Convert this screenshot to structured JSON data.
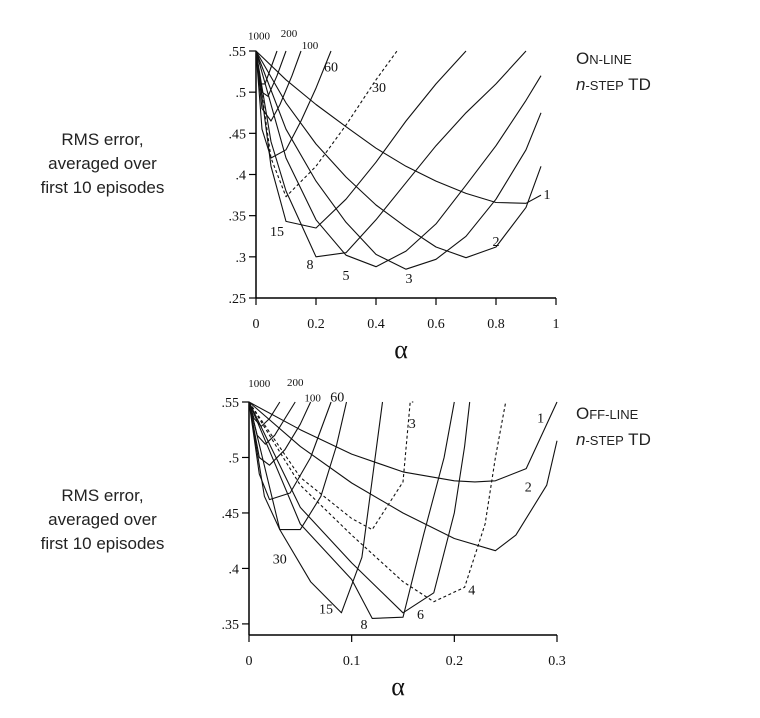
{
  "chart_data": [
    {
      "type": "line",
      "title_parts": [
        {
          "text": "O",
          "style": "big"
        },
        {
          "text": "N-LINE",
          "style": "sc"
        },
        {
          "text": "n",
          "style": "italic"
        },
        {
          "text": "-STEP",
          "style": "sc"
        },
        {
          "text": " TD",
          "style": "big"
        }
      ],
      "title_line1": "ON-LINE",
      "title_line2": "n-STEP TD",
      "ylabel_lines": [
        "RMS error,",
        "averaged over",
        "first 10 episodes"
      ],
      "xlabel": "α",
      "xlim": [
        0,
        1
      ],
      "ylim": [
        0.25,
        0.55
      ],
      "xticks": [
        0,
        0.2,
        0.4,
        0.6,
        0.8,
        1
      ],
      "xtick_labels": [
        "0",
        "0.2",
        "0.4",
        "0.6",
        "0.8",
        "1"
      ],
      "yticks": [
        0.25,
        0.3,
        0.35,
        0.4,
        0.45,
        0.5,
        0.55
      ],
      "ytick_labels": [
        ".25",
        ".3",
        ".35",
        ".4",
        ".45",
        ".5",
        ".55"
      ],
      "grid": false,
      "series": [
        {
          "name": "1",
          "dashed": false,
          "x": [
            0,
            0.1,
            0.2,
            0.3,
            0.4,
            0.5,
            0.6,
            0.7,
            0.8,
            0.9,
            0.95
          ],
          "y": [
            0.55,
            0.515,
            0.485,
            0.458,
            0.432,
            0.41,
            0.392,
            0.377,
            0.366,
            0.365,
            0.375
          ],
          "label_x": 0.97,
          "label_y": 0.375
        },
        {
          "name": "2",
          "dashed": false,
          "x": [
            0,
            0.1,
            0.2,
            0.3,
            0.4,
            0.5,
            0.6,
            0.7,
            0.8,
            0.9,
            0.95
          ],
          "y": [
            0.55,
            0.487,
            0.437,
            0.397,
            0.363,
            0.336,
            0.312,
            0.299,
            0.312,
            0.36,
            0.41
          ],
          "label_x": 0.8,
          "label_y": 0.318
        },
        {
          "name": "3",
          "dashed": false,
          "x": [
            0,
            0.1,
            0.2,
            0.3,
            0.4,
            0.5,
            0.6,
            0.7,
            0.8,
            0.9,
            0.95
          ],
          "y": [
            0.55,
            0.455,
            0.392,
            0.342,
            0.303,
            0.285,
            0.297,
            0.325,
            0.37,
            0.43,
            0.475
          ],
          "label_x": 0.51,
          "label_y": 0.273
        },
        {
          "name": "5",
          "dashed": false,
          "x": [
            0,
            0.1,
            0.2,
            0.3,
            0.4,
            0.5,
            0.6,
            0.7,
            0.8,
            0.9,
            0.95
          ],
          "y": [
            0.55,
            0.42,
            0.345,
            0.302,
            0.288,
            0.307,
            0.34,
            0.387,
            0.435,
            0.49,
            0.52
          ],
          "label_x": 0.3,
          "label_y": 0.277
        },
        {
          "name": "8",
          "dashed": false,
          "x": [
            0,
            0.05,
            0.1,
            0.2,
            0.3,
            0.4,
            0.5,
            0.6,
            0.7,
            0.8,
            0.9
          ],
          "y": [
            0.55,
            0.44,
            0.38,
            0.3,
            0.305,
            0.345,
            0.39,
            0.435,
            0.475,
            0.51,
            0.55
          ],
          "label_x": 0.18,
          "label_y": 0.29
        },
        {
          "name": "15",
          "dashed": false,
          "x": [
            0,
            0.05,
            0.1,
            0.2,
            0.3,
            0.4,
            0.5,
            0.6,
            0.7
          ],
          "y": [
            0.55,
            0.41,
            0.343,
            0.335,
            0.37,
            0.415,
            0.465,
            0.51,
            0.55
          ],
          "label_x": 0.07,
          "label_y": 0.33
        },
        {
          "name": "30",
          "dashed": true,
          "x": [
            0,
            0.05,
            0.1,
            0.2,
            0.3,
            0.4,
            0.47
          ],
          "y": [
            0.55,
            0.42,
            0.373,
            0.41,
            0.46,
            0.515,
            0.55
          ],
          "label_x": 0.41,
          "label_y": 0.505
        },
        {
          "name": "60",
          "dashed": false,
          "x": [
            0,
            0.02,
            0.05,
            0.1,
            0.15,
            0.2,
            0.25
          ],
          "y": [
            0.55,
            0.455,
            0.42,
            0.43,
            0.465,
            0.505,
            0.55
          ],
          "label_x": 0.25,
          "label_y": 0.53
        },
        {
          "name": "100",
          "dashed": false,
          "x": [
            0,
            0.02,
            0.05,
            0.08,
            0.12,
            0.15
          ],
          "y": [
            0.55,
            0.48,
            0.465,
            0.485,
            0.52,
            0.55
          ],
          "label_x": 0.18,
          "label_y": 0.557
        },
        {
          "name": "200",
          "dashed": false,
          "x": [
            0,
            0.02,
            0.04,
            0.07,
            0.1
          ],
          "y": [
            0.55,
            0.5,
            0.495,
            0.52,
            0.55
          ],
          "label_x": 0.11,
          "label_y": 0.572
        },
        {
          "name": "1000",
          "dashed": false,
          "x": [
            0,
            0.01,
            0.03,
            0.05,
            0.07
          ],
          "y": [
            0.55,
            0.51,
            0.51,
            0.53,
            0.55
          ],
          "label_x": 0.01,
          "label_y": 0.569
        }
      ]
    },
    {
      "type": "line",
      "title_parts": [
        {
          "text": "O",
          "style": "big"
        },
        {
          "text": "FF-LINE",
          "style": "sc"
        },
        {
          "text": "n",
          "style": "italic"
        },
        {
          "text": "-STEP",
          "style": "sc"
        },
        {
          "text": " TD",
          "style": "big"
        }
      ],
      "title_line1": "OFF-LINE",
      "title_line2": "n-STEP TD",
      "ylabel_lines": [
        "RMS error,",
        "averaged over",
        "first 10 episodes"
      ],
      "xlabel": "α",
      "xlim": [
        0,
        0.3
      ],
      "ylim": [
        0.34,
        0.55
      ],
      "xticks": [
        0,
        0.1,
        0.2,
        0.3
      ],
      "xtick_labels": [
        "0",
        "0.1",
        "0.2",
        "0.3"
      ],
      "yticks": [
        0.35,
        0.4,
        0.45,
        0.5,
        0.55
      ],
      "ytick_labels": [
        ".35",
        ".4",
        ".45",
        ".5",
        ".55"
      ],
      "grid": false,
      "series": [
        {
          "name": "1",
          "dashed": false,
          "x": [
            0,
            0.05,
            0.1,
            0.15,
            0.2,
            0.22,
            0.24,
            0.27,
            0.3
          ],
          "y": [
            0.55,
            0.525,
            0.503,
            0.487,
            0.479,
            0.478,
            0.479,
            0.49,
            0.55
          ],
          "label_x": 0.284,
          "label_y": 0.535
        },
        {
          "name": "2",
          "dashed": false,
          "x": [
            0,
            0.05,
            0.1,
            0.15,
            0.2,
            0.24,
            0.26,
            0.29,
            0.3
          ],
          "y": [
            0.55,
            0.51,
            0.477,
            0.45,
            0.427,
            0.416,
            0.43,
            0.475,
            0.515
          ],
          "label_x": 0.272,
          "label_y": 0.473
        },
        {
          "name": "3",
          "dashed": true,
          "x": [
            0,
            0.05,
            0.1,
            0.12,
            0.15,
            0.157,
            0.16
          ],
          "y": [
            0.55,
            0.482,
            0.445,
            0.435,
            0.478,
            0.55,
            0.55
          ],
          "label_x": 0.159,
          "label_y": 0.53
        },
        {
          "name": "4",
          "dashed": true,
          "x": [
            0,
            0.05,
            0.1,
            0.15,
            0.18,
            0.21,
            0.23,
            0.24,
            0.25
          ],
          "y": [
            0.55,
            0.475,
            0.43,
            0.388,
            0.37,
            0.383,
            0.44,
            0.5,
            0.55
          ],
          "label_x": 0.217,
          "label_y": 0.38
        },
        {
          "name": "6",
          "dashed": false,
          "x": [
            0,
            0.05,
            0.1,
            0.15,
            0.18,
            0.2,
            0.21,
            0.215
          ],
          "y": [
            0.55,
            0.455,
            0.405,
            0.36,
            0.378,
            0.45,
            0.51,
            0.55
          ],
          "label_x": 0.167,
          "label_y": 0.358
        },
        {
          "name": "8",
          "dashed": false,
          "x": [
            0,
            0.05,
            0.1,
            0.12,
            0.15,
            0.17,
            0.19,
            0.2
          ],
          "y": [
            0.55,
            0.44,
            0.39,
            0.355,
            0.356,
            0.43,
            0.5,
            0.55
          ],
          "label_x": 0.112,
          "label_y": 0.349
        },
        {
          "name": "15",
          "dashed": false,
          "x": [
            0,
            0.03,
            0.06,
            0.09,
            0.11,
            0.12,
            0.13
          ],
          "y": [
            0.55,
            0.435,
            0.388,
            0.36,
            0.41,
            0.48,
            0.55
          ],
          "label_x": 0.075,
          "label_y": 0.363
        },
        {
          "name": "30",
          "dashed": false,
          "x": [
            0,
            0.015,
            0.03,
            0.05,
            0.07,
            0.085,
            0.095
          ],
          "y": [
            0.55,
            0.465,
            0.435,
            0.435,
            0.465,
            0.51,
            0.55
          ],
          "label_x": 0.03,
          "label_y": 0.408
        },
        {
          "name": "60",
          "dashed": false,
          "x": [
            0,
            0.01,
            0.02,
            0.04,
            0.06,
            0.08
          ],
          "y": [
            0.55,
            0.485,
            0.462,
            0.468,
            0.5,
            0.55
          ],
          "label_x": 0.086,
          "label_y": 0.554
        },
        {
          "name": "100",
          "dashed": false,
          "x": [
            0,
            0.01,
            0.02,
            0.035,
            0.05,
            0.06
          ],
          "y": [
            0.55,
            0.5,
            0.493,
            0.507,
            0.53,
            0.55
          ],
          "label_x": 0.062,
          "label_y": 0.554
        },
        {
          "name": "200",
          "dashed": false,
          "x": [
            0,
            0.008,
            0.016,
            0.025,
            0.035,
            0.045
          ],
          "y": [
            0.55,
            0.52,
            0.512,
            0.52,
            0.535,
            0.55
          ],
          "label_x": 0.045,
          "label_y": 0.568
        },
        {
          "name": "1000",
          "dashed": false,
          "x": [
            0,
            0.005,
            0.012,
            0.02,
            0.03
          ],
          "y": [
            0.55,
            0.535,
            0.528,
            0.535,
            0.55
          ],
          "label_x": 0.01,
          "label_y": 0.567
        }
      ]
    }
  ]
}
